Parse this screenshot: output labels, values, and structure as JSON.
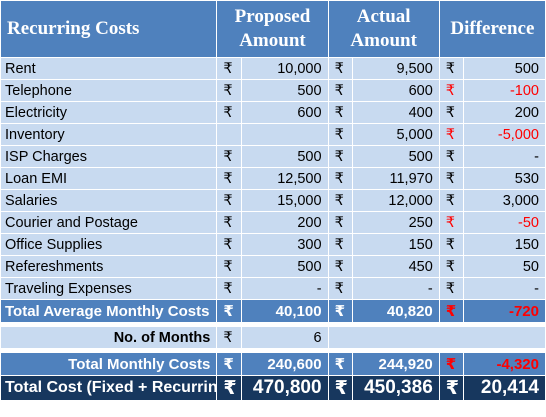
{
  "header": {
    "title": "Recurring Costs",
    "proposed_line1": "Proposed",
    "proposed_line2": "Amount",
    "actual_line1": "Actual",
    "actual_line2": "Amount",
    "difference": "Difference"
  },
  "currency": "₹",
  "rows": [
    {
      "label": "Rent",
      "p_sym": "₹",
      "p": "10,000",
      "a_sym": "₹",
      "a": "9,500",
      "d_sym": "₹",
      "d": "500",
      "d_neg": false
    },
    {
      "label": "Telephone",
      "p_sym": "₹",
      "p": "500",
      "a_sym": "₹",
      "a": "600",
      "d_sym": "₹",
      "d": "-100",
      "d_neg": true
    },
    {
      "label": "Electricity",
      "p_sym": "₹",
      "p": "600",
      "a_sym": "₹",
      "a": "400",
      "d_sym": "₹",
      "d": "200",
      "d_neg": false
    },
    {
      "label": "Inventory",
      "p_sym": "",
      "p": "",
      "a_sym": "₹",
      "a": "5,000",
      "d_sym": "₹",
      "d": "-5,000",
      "d_neg": true
    },
    {
      "label": "ISP Charges",
      "p_sym": "₹",
      "p": "500",
      "a_sym": "₹",
      "a": "500",
      "d_sym": "₹",
      "d": "-",
      "d_neg": false
    },
    {
      "label": "Loan EMI",
      "p_sym": "₹",
      "p": "12,500",
      "a_sym": "₹",
      "a": "11,970",
      "d_sym": "₹",
      "d": "530",
      "d_neg": false
    },
    {
      "label": "Salaries",
      "p_sym": "₹",
      "p": "15,000",
      "a_sym": "₹",
      "a": "12,000",
      "d_sym": "₹",
      "d": "3,000",
      "d_neg": false
    },
    {
      "label": "Courier and Postage",
      "p_sym": "₹",
      "p": "200",
      "a_sym": "₹",
      "a": "250",
      "d_sym": "₹",
      "d": "-50",
      "d_neg": true
    },
    {
      "label": "Office Supplies",
      "p_sym": "₹",
      "p": "300",
      "a_sym": "₹",
      "a": "150",
      "d_sym": "₹",
      "d": "150",
      "d_neg": false
    },
    {
      "label": "Refereshments",
      "p_sym": "₹",
      "p": "500",
      "a_sym": "₹",
      "a": "450",
      "d_sym": "₹",
      "d": "50",
      "d_neg": false
    },
    {
      "label": "Traveling Expenses",
      "p_sym": "₹",
      "p": "-",
      "a_sym": "₹",
      "a": "-",
      "d_sym": "₹",
      "d": "-",
      "d_neg": false
    }
  ],
  "avg_total": {
    "label": "Total Average Monthly Costs",
    "p": "40,100",
    "a": "40,820",
    "d": "-720"
  },
  "months": {
    "label": "No. of Months",
    "value": "6"
  },
  "monthly_total": {
    "label": "Total Monthly Costs",
    "p": "240,600",
    "a": "244,920",
    "d": "-4,320"
  },
  "grand_total": {
    "label": "Total Cost (Fixed + Recurring)",
    "p": "470,800",
    "a": "450,386",
    "d": "20,414"
  }
}
